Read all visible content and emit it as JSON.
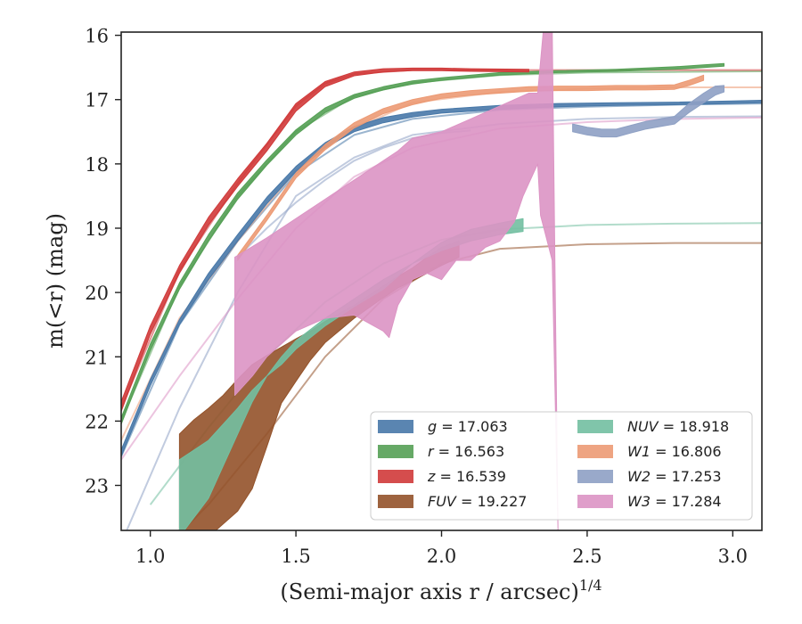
{
  "chart_data": {
    "type": "area",
    "xlabel": "(Semi-major axis r / arcsec)",
    "xlabel_superscript": "1/4",
    "ylabel": "m(<r) (mag)",
    "xlim": [
      0.9,
      3.1
    ],
    "ylim": [
      23.7,
      15.95
    ],
    "y_inverted": true,
    "grid": false,
    "legend_placement": "lower-right",
    "x_ticks": [
      1.0,
      1.5,
      2.0,
      2.5,
      3.0
    ],
    "x_tick_labels": [
      "1.0",
      "1.5",
      "2.0",
      "2.5",
      "3.0"
    ],
    "y_ticks": [
      16,
      17,
      18,
      19,
      20,
      21,
      22,
      23
    ],
    "y_tick_labels": [
      "16",
      "17",
      "18",
      "19",
      "20",
      "21",
      "22",
      "23"
    ],
    "series": [
      {
        "name": "g",
        "legend_label": "g = 17.063",
        "color": "#4878a8",
        "band": {
          "x": [
            0.9,
            1.0,
            1.1,
            1.2,
            1.3,
            1.4,
            1.5,
            1.6,
            1.7,
            1.8,
            1.9,
            2.0,
            2.2,
            2.4,
            2.6,
            2.8,
            3.0,
            3.1
          ],
          "y_low": [
            22.55,
            21.45,
            20.5,
            19.8,
            19.2,
            18.62,
            18.12,
            17.75,
            17.5,
            17.36,
            17.27,
            17.21,
            17.15,
            17.11,
            17.09,
            17.08,
            17.06,
            17.05
          ],
          "y_high": [
            22.45,
            21.35,
            20.42,
            19.7,
            19.1,
            18.52,
            18.04,
            17.67,
            17.42,
            17.28,
            17.2,
            17.15,
            17.09,
            17.06,
            17.05,
            17.04,
            17.02,
            17.01
          ]
        },
        "model": {
          "x": [
            0.9,
            1.1,
            1.3,
            1.5,
            1.7,
            1.9,
            2.2,
            2.5,
            2.8,
            3.1
          ],
          "y": [
            22.55,
            20.5,
            19.2,
            18.15,
            17.55,
            17.3,
            17.16,
            17.11,
            17.08,
            17.06
          ]
        }
      },
      {
        "name": "r",
        "legend_label": "r = 16.563",
        "color": "#55a055",
        "band": {
          "x": [
            0.9,
            1.0,
            1.1,
            1.2,
            1.3,
            1.4,
            1.5,
            1.6,
            1.7,
            1.8,
            1.9,
            2.0,
            2.2,
            2.4,
            2.6,
            2.8,
            2.9,
            2.97
          ],
          "y_low": [
            22.05,
            20.9,
            19.95,
            19.2,
            18.55,
            18.02,
            17.55,
            17.2,
            16.98,
            16.85,
            16.76,
            16.7,
            16.62,
            16.58,
            16.56,
            16.53,
            16.5,
            16.48
          ],
          "y_high": [
            21.95,
            20.8,
            19.85,
            19.1,
            18.45,
            17.94,
            17.47,
            17.13,
            16.92,
            16.8,
            16.71,
            16.66,
            16.58,
            16.55,
            16.53,
            16.49,
            16.46,
            16.44
          ]
        },
        "model": {
          "x": [
            0.9,
            1.1,
            1.3,
            1.5,
            1.7,
            1.9,
            2.2,
            2.5,
            2.8,
            3.1
          ],
          "y": [
            22.0,
            19.9,
            18.5,
            17.5,
            16.95,
            16.74,
            16.62,
            16.58,
            16.57,
            16.56
          ]
        }
      },
      {
        "name": "z",
        "legend_label": "z = 16.539",
        "color": "#d03a3a",
        "band": {
          "x": [
            0.9,
            1.0,
            1.1,
            1.2,
            1.3,
            1.4,
            1.5,
            1.6,
            1.7,
            1.8,
            1.9,
            2.0,
            2.1,
            2.3
          ],
          "y_low": [
            21.85,
            20.65,
            19.7,
            18.95,
            18.35,
            17.8,
            17.18,
            16.8,
            16.63,
            16.57,
            16.55,
            16.55,
            16.56,
            16.57
          ],
          "y_high": [
            21.7,
            20.52,
            19.58,
            18.83,
            18.23,
            17.68,
            17.06,
            16.72,
            16.57,
            16.52,
            16.51,
            16.51,
            16.52,
            16.53
          ]
        },
        "model": {
          "x": [
            0.9,
            1.1,
            1.3,
            1.5,
            1.6,
            1.7,
            1.9,
            2.2,
            2.5,
            2.8,
            3.1
          ],
          "y": [
            21.8,
            19.65,
            18.3,
            17.1,
            16.75,
            16.6,
            16.54,
            16.54,
            16.54,
            16.54,
            16.54
          ]
        }
      },
      {
        "name": "FUV",
        "legend_label": "FUV = 19.227",
        "color": "#93522a",
        "band": {
          "x": [
            1.1,
            1.15,
            1.2,
            1.25,
            1.3,
            1.35,
            1.4,
            1.45,
            1.5,
            1.55,
            1.6,
            1.7,
            1.8,
            1.85,
            1.9,
            1.95,
            2.0,
            2.06
          ],
          "y_low": [
            23.8,
            23.8,
            23.8,
            23.6,
            23.4,
            23.05,
            22.4,
            21.72,
            21.38,
            21.05,
            20.78,
            20.4,
            20.08,
            19.93,
            19.82,
            19.7,
            19.58,
            19.45
          ],
          "y_high": [
            22.2,
            21.98,
            21.8,
            21.6,
            21.35,
            21.12,
            20.98,
            20.85,
            20.72,
            20.6,
            20.45,
            20.2,
            19.9,
            19.75,
            19.62,
            19.45,
            19.3,
            19.2
          ]
        },
        "model": {
          "x": [
            1.0,
            1.2,
            1.4,
            1.6,
            1.8,
            2.0,
            2.2,
            2.5,
            2.8,
            3.1
          ],
          "y": [
            24.2,
            23.3,
            22.2,
            21.0,
            20.1,
            19.55,
            19.32,
            19.25,
            19.23,
            19.23
          ]
        }
      },
      {
        "name": "NUV",
        "legend_label": "NUV = 18.918",
        "color": "#72bfa1",
        "band": {
          "x": [
            1.1,
            1.2,
            1.3,
            1.35,
            1.4,
            1.45,
            1.5,
            1.6,
            1.7,
            1.8,
            1.9,
            2.0,
            2.1,
            2.2,
            2.28
          ],
          "y_low": [
            23.8,
            23.2,
            22.2,
            21.7,
            21.3,
            21.0,
            20.75,
            20.4,
            20.1,
            19.8,
            19.55,
            19.35,
            19.2,
            19.1,
            19.05
          ],
          "y_high": [
            22.6,
            22.3,
            21.8,
            21.52,
            21.3,
            21.12,
            20.88,
            20.52,
            20.22,
            19.95,
            19.55,
            19.22,
            19.02,
            18.92,
            18.85
          ]
        },
        "model": {
          "x": [
            1.0,
            1.2,
            1.4,
            1.6,
            1.8,
            2.0,
            2.2,
            2.5,
            2.8,
            3.1
          ],
          "y": [
            23.3,
            22.1,
            21.0,
            20.15,
            19.55,
            19.18,
            19.02,
            18.95,
            18.93,
            18.92
          ]
        }
      },
      {
        "name": "W1",
        "legend_label": "W1 = 16.806",
        "color": "#ec9a74",
        "band": {
          "x": [
            1.3,
            1.4,
            1.5,
            1.6,
            1.7,
            1.8,
            1.9,
            2.0,
            2.1,
            2.2,
            2.3,
            2.4,
            2.5,
            2.6,
            2.7,
            2.8,
            2.85,
            2.9
          ],
          "y_low": [
            19.5,
            18.88,
            18.22,
            17.78,
            17.44,
            17.22,
            17.08,
            16.98,
            16.93,
            16.9,
            16.87,
            16.86,
            16.86,
            16.85,
            16.85,
            16.84,
            16.78,
            16.7
          ],
          "y_high": [
            19.42,
            18.8,
            18.14,
            17.7,
            17.36,
            17.14,
            17.0,
            16.91,
            16.86,
            16.83,
            16.8,
            16.79,
            16.79,
            16.78,
            16.78,
            16.77,
            16.7,
            16.62
          ]
        },
        "model": {
          "x": [
            0.9,
            1.1,
            1.3,
            1.5,
            1.7,
            1.9,
            2.2,
            2.5,
            2.8,
            3.1
          ],
          "y": [
            22.3,
            20.4,
            19.2,
            18.1,
            17.45,
            17.05,
            16.88,
            16.83,
            16.81,
            16.81
          ]
        }
      },
      {
        "name": "W2",
        "legend_label": "W2 = 17.253",
        "color": "#8ea0c4",
        "band": {
          "x": [
            2.45,
            2.5,
            2.55,
            2.6,
            2.65,
            2.7,
            2.75,
            2.8,
            2.85,
            2.9,
            2.94,
            2.97
          ],
          "y_low": [
            17.5,
            17.55,
            17.58,
            17.58,
            17.52,
            17.46,
            17.42,
            17.38,
            17.2,
            17.05,
            16.93,
            16.88
          ],
          "y_high": [
            17.38,
            17.43,
            17.46,
            17.46,
            17.4,
            17.34,
            17.3,
            17.26,
            17.06,
            16.9,
            16.79,
            16.78
          ]
        },
        "model": {
          "x": [
            0.9,
            1.1,
            1.3,
            1.5,
            1.7,
            1.9,
            2.2,
            2.5,
            2.8,
            3.1
          ],
          "y": [
            23.9,
            21.8,
            20.0,
            18.5,
            17.9,
            17.55,
            17.38,
            17.3,
            17.27,
            17.26
          ]
        },
        "model_secondary": {
          "x": [
            1.3,
            1.4,
            1.5,
            1.6,
            1.7,
            1.8,
            1.9,
            2.0,
            2.1
          ],
          "y": [
            19.45,
            19.0,
            18.6,
            18.25,
            17.95,
            17.75,
            17.6,
            17.52,
            17.48
          ]
        }
      },
      {
        "name": "W3",
        "legend_label": "W3 = 17.284",
        "color": "#dc94c4",
        "band": {
          "x": [
            1.29,
            1.35,
            1.4,
            1.5,
            1.6,
            1.7,
            1.8,
            1.82,
            1.85,
            1.9,
            1.95,
            2.0,
            2.05,
            2.1,
            2.15,
            2.2,
            2.25,
            2.28,
            2.3,
            2.33,
            2.34,
            2.38,
            2.4,
            2.38,
            2.35,
            2.33,
            2.3,
            2.25,
            2.2,
            2.1,
            2.0,
            1.95,
            1.9,
            1.85,
            1.8,
            1.7,
            1.6,
            1.5,
            1.4,
            1.29
          ],
          "y": [
            21.6,
            21.3,
            21.0,
            20.6,
            20.4,
            20.35,
            20.6,
            20.7,
            20.2,
            19.8,
            19.7,
            19.8,
            19.5,
            19.5,
            19.3,
            19.2,
            18.9,
            18.5,
            18.3,
            18.0,
            18.8,
            19.5,
            23.7,
            15.9,
            15.9,
            16.9,
            16.9,
            17.0,
            17.1,
            17.3,
            17.5,
            17.55,
            17.6,
            17.8,
            17.95,
            18.25,
            18.55,
            18.85,
            19.15,
            19.45
          ]
        },
        "model": {
          "x": [
            0.9,
            1.1,
            1.3,
            1.5,
            1.7,
            1.9,
            2.2,
            2.5,
            2.8,
            3.1
          ],
          "y": [
            22.6,
            21.3,
            20.1,
            19.0,
            18.2,
            17.75,
            17.45,
            17.35,
            17.3,
            17.28
          ]
        }
      }
    ],
    "legend": [
      {
        "symbol": "g",
        "value": "17.063",
        "color": "#4878a8",
        "column": 0
      },
      {
        "symbol": "r",
        "value": "16.563",
        "color": "#55a055",
        "column": 0
      },
      {
        "symbol": "z",
        "value": "16.539",
        "color": "#d03a3a",
        "column": 0
      },
      {
        "symbol": "FUV",
        "value": "19.227",
        "color": "#93522a",
        "column": 0
      },
      {
        "symbol": "NUV",
        "value": "18.918",
        "color": "#72bfa1",
        "column": 1
      },
      {
        "symbol": "W1",
        "value": "16.806",
        "color": "#ec9a74",
        "column": 1
      },
      {
        "symbol": "W2",
        "value": "17.253",
        "color": "#8ea0c4",
        "column": 1
      },
      {
        "symbol": "W3",
        "value": "17.284",
        "color": "#dc94c4",
        "column": 1
      }
    ]
  }
}
